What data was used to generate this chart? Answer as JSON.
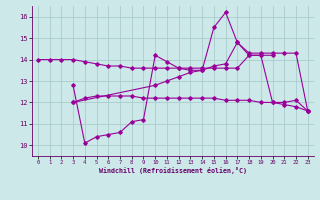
{
  "xlabel": "Windchill (Refroidissement éolien,°C)",
  "bg_color": "#cce8e8",
  "grid_color": "#aacccc",
  "line_color": "#990099",
  "xlim": [
    -0.5,
    23.5
  ],
  "ylim": [
    9.5,
    16.5
  ],
  "xticks": [
    0,
    1,
    2,
    3,
    4,
    5,
    6,
    7,
    8,
    9,
    10,
    11,
    12,
    13,
    14,
    15,
    16,
    17,
    18,
    19,
    20,
    21,
    22,
    23
  ],
  "yticks": [
    10,
    11,
    12,
    13,
    14,
    15,
    16
  ],
  "series": [
    {
      "x": [
        0,
        1,
        2,
        3,
        4,
        5,
        6,
        7,
        8,
        9,
        10,
        11,
        12,
        13,
        14,
        15,
        16,
        17,
        18,
        19,
        20
      ],
      "y": [
        14.0,
        14.0,
        14.0,
        14.0,
        13.9,
        13.8,
        13.7,
        13.7,
        13.6,
        13.6,
        13.6,
        13.6,
        13.6,
        13.6,
        13.6,
        13.6,
        13.6,
        13.6,
        14.2,
        14.2,
        14.2
      ]
    },
    {
      "x": [
        3,
        4,
        5,
        6,
        7,
        8,
        9,
        10,
        11,
        12,
        13,
        14,
        15,
        16,
        17,
        18,
        19,
        20,
        21,
        22,
        23
      ],
      "y": [
        12.0,
        12.2,
        12.3,
        12.3,
        12.3,
        12.3,
        12.2,
        12.2,
        12.2,
        12.2,
        12.2,
        12.2,
        12.2,
        12.1,
        12.1,
        12.1,
        12.0,
        12.0,
        11.9,
        11.8,
        11.6
      ]
    },
    {
      "x": [
        3,
        4,
        5,
        6,
        7,
        8,
        9,
        10,
        11,
        12,
        13,
        14,
        15,
        16,
        17,
        18,
        19,
        20,
        21,
        22,
        23
      ],
      "y": [
        12.8,
        10.1,
        10.4,
        10.5,
        10.6,
        11.1,
        11.2,
        14.2,
        13.9,
        13.6,
        13.5,
        13.5,
        15.5,
        16.2,
        14.8,
        14.2,
        14.2,
        12.0,
        12.0,
        12.1,
        11.6
      ]
    },
    {
      "x": [
        3,
        10,
        11,
        12,
        13,
        14,
        15,
        16,
        17,
        18,
        19,
        20,
        21,
        22,
        23
      ],
      "y": [
        12.0,
        12.8,
        13.0,
        13.2,
        13.4,
        13.5,
        13.7,
        13.8,
        14.8,
        14.3,
        14.3,
        14.3,
        14.3,
        14.3,
        11.6
      ]
    }
  ]
}
